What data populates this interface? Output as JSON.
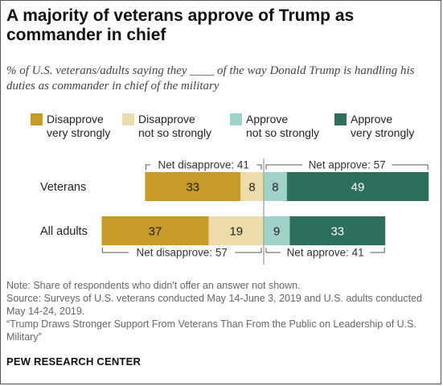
{
  "title": "A majority of veterans approve of Trump as commander in chief",
  "subtitle": "% of U.S. veterans/adults saying they ____ of the way Donald Trump is handling his duties as commander in chief of the military",
  "colors": {
    "disapprove_strong": "#c79b2a",
    "disapprove_not_so": "#ecdcab",
    "approve_not_so": "#9fd3c9",
    "approve_strong": "#2e6e5d"
  },
  "legend": [
    {
      "label_line1": "Disapprove",
      "label_line2": "very strongly"
    },
    {
      "label_line1": "Disapprove",
      "label_line2": "not so strongly"
    },
    {
      "label_line1": "Approve",
      "label_line2": "not so strongly"
    },
    {
      "label_line1": "Approve",
      "label_line2": "very strongly"
    }
  ],
  "chart_data": {
    "type": "bar",
    "orientation": "diverging-horizontal-stacked",
    "categories": [
      "Veterans",
      "All adults"
    ],
    "series": [
      {
        "name": "Disapprove very strongly",
        "values": [
          33,
          37
        ]
      },
      {
        "name": "Disapprove not so strongly",
        "values": [
          8,
          19
        ]
      },
      {
        "name": "Approve not so strongly",
        "values": [
          8,
          9
        ]
      },
      {
        "name": "Approve very strongly",
        "values": [
          49,
          33
        ]
      }
    ],
    "net_labels": [
      {
        "disapprove": "Net disapprove: 41",
        "approve": "Net approve: 57"
      },
      {
        "disapprove": "Net disapprove: 57",
        "approve": "Net approve: 41"
      }
    ]
  },
  "notes": [
    "Note: Share of respondents who didn't offer an answer not shown.",
    "Source: Surveys of U.S. veterans conducted May 14-June 3, 2019 and U.S. adults conducted May 14-24, 2019.",
    "“Trump Draws Stronger Support From Veterans Than From the Public on Leadership of U.S. Military”"
  ],
  "brand": "PEW RESEARCH CENTER"
}
